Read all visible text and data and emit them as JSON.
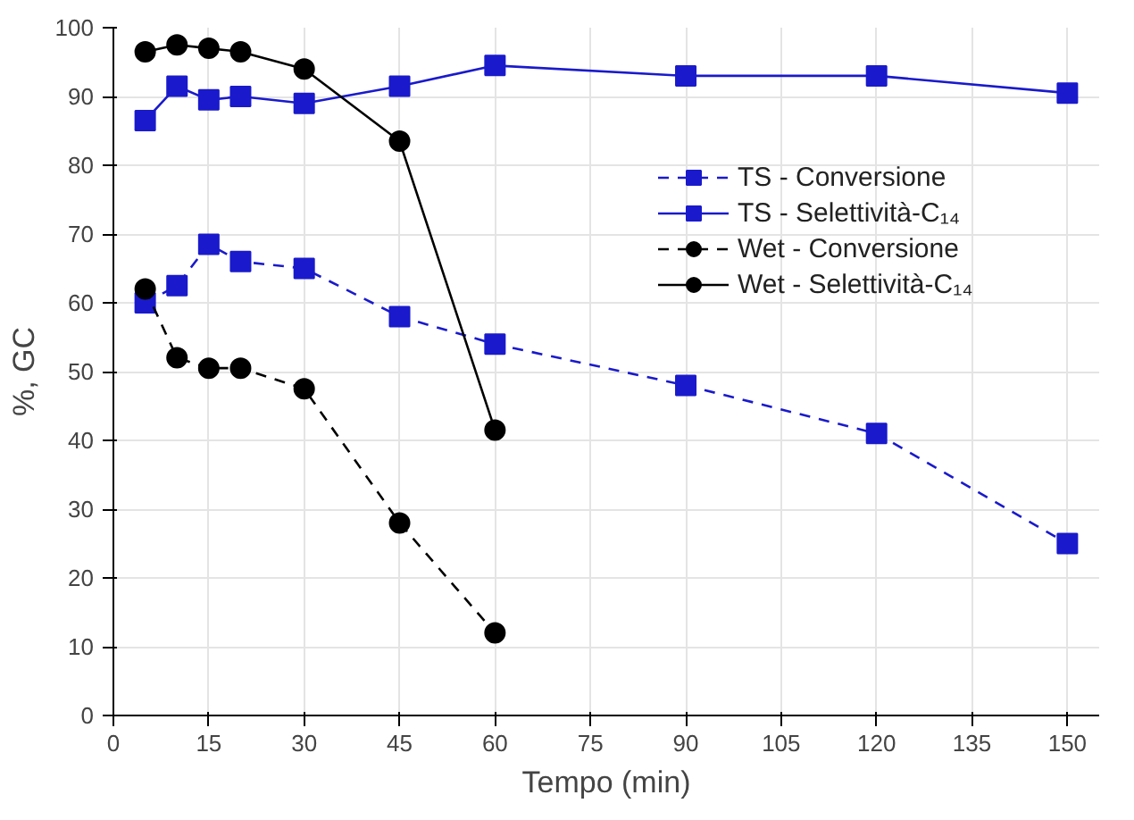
{
  "chart_data": {
    "type": "line",
    "xlabel": "Tempo (min)",
    "ylabel": "%, GC",
    "x": [
      5,
      10,
      15,
      20,
      30,
      45,
      60,
      90,
      120,
      150
    ],
    "series": [
      {
        "name": "TS - Conversione",
        "color": "#1a1acc",
        "marker": "square",
        "line_style": "dashed",
        "values": [
          60,
          62.5,
          68.5,
          66,
          65,
          58,
          54,
          48,
          41,
          25
        ]
      },
      {
        "name": "TS - Selettività-C₁₄",
        "color": "#1a1acc",
        "marker": "square",
        "line_style": "solid",
        "values": [
          86.5,
          91.5,
          89.5,
          90,
          89,
          91.5,
          94.5,
          93,
          93,
          90.5
        ]
      },
      {
        "name": "Wet - Conversione",
        "color": "#000000",
        "marker": "circle",
        "line_style": "dashed",
        "x": [
          5,
          10,
          15,
          20,
          30,
          45,
          60
        ],
        "values": [
          62,
          52,
          50.5,
          50.5,
          47.5,
          28,
          12
        ]
      },
      {
        "name": "Wet - Selettività-C₁₄",
        "color": "#000000",
        "marker": "circle",
        "line_style": "solid",
        "x": [
          5,
          10,
          15,
          20,
          30,
          45,
          60
        ],
        "values": [
          96.5,
          97.5,
          97,
          96.5,
          94,
          83.5,
          41.5
        ]
      }
    ],
    "xlim": [
      0,
      155
    ],
    "ylim": [
      0,
      100
    ],
    "xticks": [
      0,
      15,
      30,
      45,
      60,
      75,
      90,
      105,
      120,
      135,
      150
    ],
    "yticks": [
      0,
      10,
      20,
      30,
      40,
      50,
      60,
      70,
      80,
      90,
      100
    ],
    "grid": true,
    "legend": "right"
  }
}
